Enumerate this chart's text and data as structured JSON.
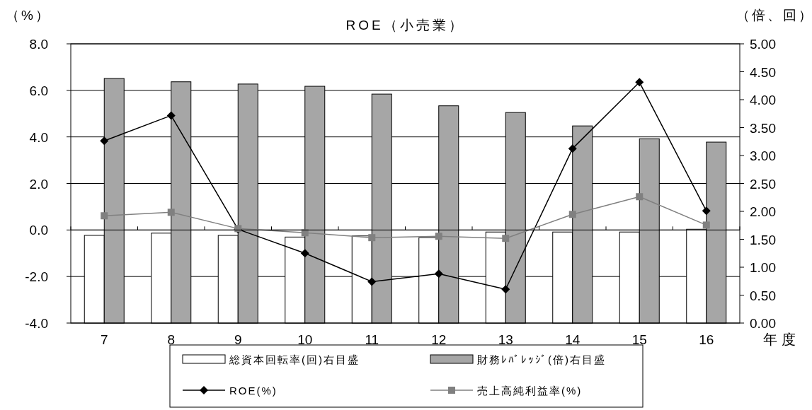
{
  "chart_data": {
    "type": "bar",
    "title": "ROE（小売業）",
    "ylabel": "（%）",
    "y2label": "（倍、回）",
    "xlabel": "年度",
    "categories": [
      "7",
      "8",
      "9",
      "10",
      "11",
      "12",
      "13",
      "14",
      "15",
      "16"
    ],
    "series": [
      {
        "name": "総資本回転率(回)右目盛",
        "axis": "y2",
        "color": "#ffffff",
        "values": [
          1.57,
          1.61,
          1.57,
          1.54,
          1.56,
          1.53,
          1.63,
          1.63,
          1.63,
          1.68
        ]
      },
      {
        "name": "財務ﾚﾊﾞﾚｯｼﾞ(倍)右目盛",
        "axis": "y2",
        "color": "#a6a6a6",
        "values": [
          4.38,
          4.32,
          4.28,
          4.24,
          4.1,
          3.89,
          3.77,
          3.53,
          3.3,
          3.24
        ]
      },
      {
        "name": "ROE(%)",
        "type": "line",
        "marker": "diamond",
        "color": "#000000",
        "values": [
          3.83,
          4.92,
          0.03,
          -1.0,
          -2.22,
          -1.88,
          -2.55,
          3.5,
          6.35,
          0.82
        ]
      },
      {
        "name": "売上高純利益率(%)",
        "type": "line",
        "marker": "square",
        "color": "#808080",
        "values": [
          0.61,
          0.76,
          0.06,
          -0.12,
          -0.33,
          -0.27,
          -0.36,
          0.67,
          1.43,
          0.21
        ]
      }
    ],
    "ylim": [
      -4,
      8
    ],
    "yticks": [
      {
        "value": -4,
        "label": "-4.0"
      },
      {
        "value": -2,
        "label": "-2.0"
      },
      {
        "value": 0,
        "label": "0.0"
      },
      {
        "value": 2,
        "label": "2.0"
      },
      {
        "value": 4,
        "label": "4.0"
      },
      {
        "value": 6,
        "label": "6.0"
      },
      {
        "value": 8,
        "label": "8.0"
      }
    ],
    "y2lim": [
      0,
      5
    ],
    "y2ticks": [
      {
        "value": 0,
        "label": "0.00"
      },
      {
        "value": 0.5,
        "label": "0.50"
      },
      {
        "value": 1,
        "label": "1.00"
      },
      {
        "value": 1.5,
        "label": "1.50"
      },
      {
        "value": 2,
        "label": "2.00"
      },
      {
        "value": 2.5,
        "label": "2.50"
      },
      {
        "value": 3,
        "label": "3.00"
      },
      {
        "value": 3.5,
        "label": "3.50"
      },
      {
        "value": 4,
        "label": "4.00"
      },
      {
        "value": 4.5,
        "label": "4.50"
      },
      {
        "value": 5,
        "label": "5.00"
      }
    ],
    "grid": "y",
    "legend": "bottom"
  }
}
